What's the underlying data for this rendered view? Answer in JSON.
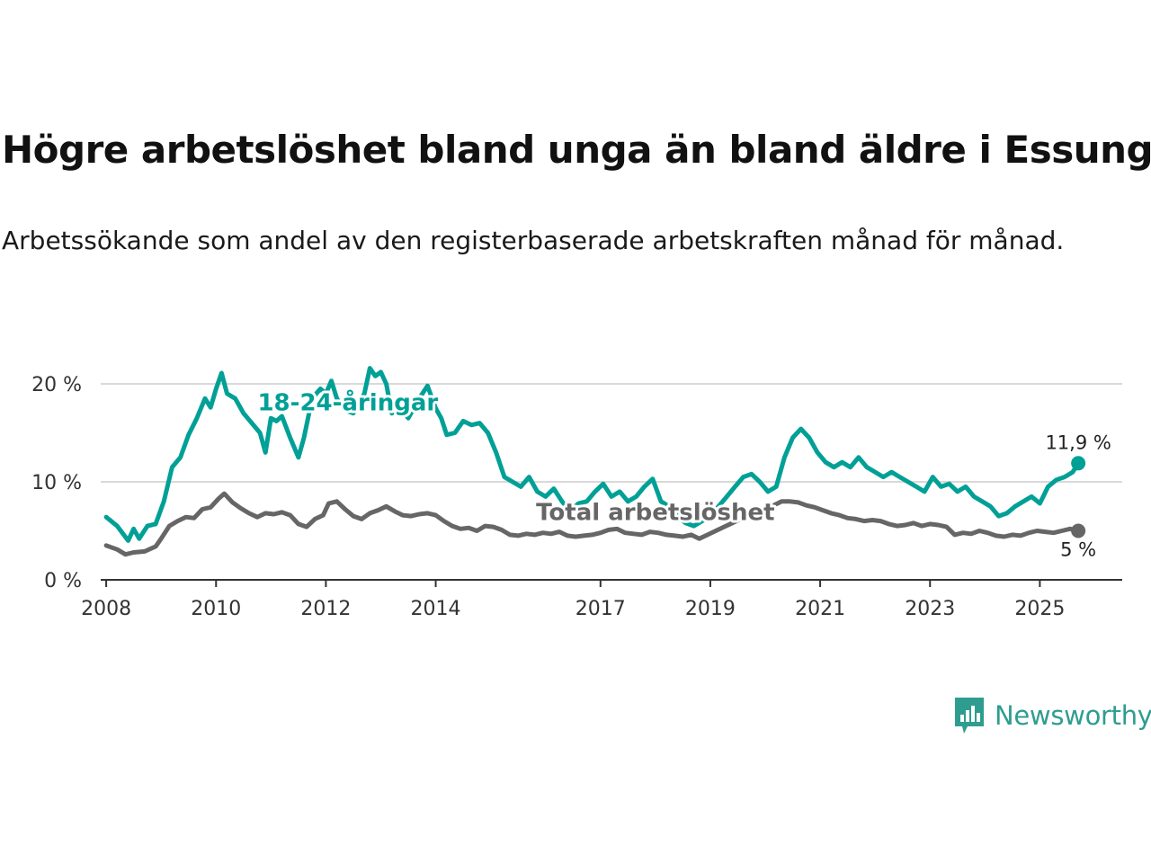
{
  "title": "Högre arbetslöshet bland unga än bland äldre i Essunga",
  "subtitle": "Arbetssökande som andel av den registerbaserade arbetskraften månad för månad.",
  "brand": {
    "name": "Newsworthy",
    "color": "#2e9d90"
  },
  "chart_data": {
    "type": "line",
    "title": "Högre arbetslöshet bland unga än bland äldre i Essunga",
    "xlabel": "",
    "ylabel": "",
    "xlim": [
      2007.9,
      2026.5
    ],
    "ylim": [
      0,
      20
    ],
    "y_ticks": [
      0,
      10,
      20
    ],
    "y_tick_labels": [
      "0 %",
      "10 %",
      "20 %"
    ],
    "x_ticks": [
      2008,
      2010,
      2012,
      2014,
      2017,
      2019,
      2021,
      2023,
      2025
    ],
    "x_tick_labels": [
      "2008",
      "2010",
      "2012",
      "2014",
      "2017",
      "2019",
      "2021",
      "2023",
      "2025"
    ],
    "grid": true,
    "series": [
      {
        "name": "18-24-åringar",
        "color": "#00a096",
        "label_at": [
          2012.4,
          17.3
        ],
        "end_label": "11,9 %",
        "points": [
          [
            2008.0,
            6.4
          ],
          [
            2008.2,
            5.5
          ],
          [
            2008.4,
            4.0
          ],
          [
            2008.5,
            5.2
          ],
          [
            2008.6,
            4.2
          ],
          [
            2008.75,
            5.5
          ],
          [
            2008.9,
            5.7
          ],
          [
            2009.05,
            8.0
          ],
          [
            2009.2,
            11.5
          ],
          [
            2009.35,
            12.5
          ],
          [
            2009.5,
            14.8
          ],
          [
            2009.65,
            16.5
          ],
          [
            2009.8,
            18.5
          ],
          [
            2009.9,
            17.6
          ],
          [
            2010.0,
            19.5
          ],
          [
            2010.1,
            21.1
          ],
          [
            2010.2,
            19.0
          ],
          [
            2010.35,
            18.5
          ],
          [
            2010.5,
            17.0
          ],
          [
            2010.65,
            16.0
          ],
          [
            2010.8,
            15.0
          ],
          [
            2010.9,
            13.0
          ],
          [
            2011.0,
            16.5
          ],
          [
            2011.1,
            16.2
          ],
          [
            2011.2,
            16.7
          ],
          [
            2011.35,
            14.5
          ],
          [
            2011.5,
            12.5
          ],
          [
            2011.6,
            14.5
          ],
          [
            2011.75,
            18.5
          ],
          [
            2011.9,
            19.5
          ],
          [
            2012.0,
            19.0
          ],
          [
            2012.1,
            20.3
          ],
          [
            2012.2,
            18.5
          ],
          [
            2012.35,
            17.3
          ],
          [
            2012.5,
            17.0
          ],
          [
            2012.7,
            19.0
          ],
          [
            2012.8,
            21.6
          ],
          [
            2012.9,
            20.8
          ],
          [
            2013.0,
            21.2
          ],
          [
            2013.1,
            20.0
          ],
          [
            2013.2,
            17.0
          ],
          [
            2013.35,
            17.5
          ],
          [
            2013.5,
            16.5
          ],
          [
            2013.7,
            18.5
          ],
          [
            2013.85,
            19.8
          ],
          [
            2014.0,
            17.5
          ],
          [
            2014.1,
            16.5
          ],
          [
            2014.2,
            14.8
          ],
          [
            2014.35,
            15.0
          ],
          [
            2014.5,
            16.2
          ],
          [
            2014.65,
            15.8
          ],
          [
            2014.8,
            16.0
          ],
          [
            2014.95,
            15.0
          ],
          [
            2015.1,
            13.0
          ],
          [
            2015.25,
            10.5
          ],
          [
            2015.4,
            10.0
          ],
          [
            2015.55,
            9.5
          ],
          [
            2015.7,
            10.5
          ],
          [
            2015.85,
            9.0
          ],
          [
            2016.0,
            8.5
          ],
          [
            2016.15,
            9.3
          ],
          [
            2016.3,
            8.0
          ],
          [
            2016.45,
            7.0
          ],
          [
            2016.6,
            7.8
          ],
          [
            2016.75,
            8.0
          ],
          [
            2016.9,
            9.0
          ],
          [
            2017.05,
            9.8
          ],
          [
            2017.2,
            8.5
          ],
          [
            2017.35,
            9.0
          ],
          [
            2017.5,
            8.0
          ],
          [
            2017.65,
            8.5
          ],
          [
            2017.8,
            9.5
          ],
          [
            2017.95,
            10.3
          ],
          [
            2018.1,
            8.0
          ],
          [
            2018.25,
            7.5
          ],
          [
            2018.4,
            6.5
          ],
          [
            2018.55,
            5.8
          ],
          [
            2018.7,
            5.5
          ],
          [
            2018.85,
            6.0
          ],
          [
            2019.0,
            6.5
          ],
          [
            2019.15,
            7.5
          ],
          [
            2019.3,
            8.5
          ],
          [
            2019.45,
            9.5
          ],
          [
            2019.6,
            10.5
          ],
          [
            2019.75,
            10.8
          ],
          [
            2019.9,
            10.0
          ],
          [
            2020.05,
            9.0
          ],
          [
            2020.2,
            9.5
          ],
          [
            2020.35,
            12.5
          ],
          [
            2020.5,
            14.5
          ],
          [
            2020.65,
            15.4
          ],
          [
            2020.8,
            14.5
          ],
          [
            2020.95,
            13.0
          ],
          [
            2021.1,
            12.0
          ],
          [
            2021.25,
            11.5
          ],
          [
            2021.4,
            12.0
          ],
          [
            2021.55,
            11.5
          ],
          [
            2021.7,
            12.5
          ],
          [
            2021.85,
            11.5
          ],
          [
            2022.0,
            11.0
          ],
          [
            2022.15,
            10.5
          ],
          [
            2022.3,
            11.0
          ],
          [
            2022.45,
            10.5
          ],
          [
            2022.6,
            10.0
          ],
          [
            2022.75,
            9.5
          ],
          [
            2022.9,
            9.0
          ],
          [
            2023.05,
            10.5
          ],
          [
            2023.2,
            9.5
          ],
          [
            2023.35,
            9.8
          ],
          [
            2023.5,
            9.0
          ],
          [
            2023.65,
            9.5
          ],
          [
            2023.8,
            8.5
          ],
          [
            2023.95,
            8.0
          ],
          [
            2024.1,
            7.5
          ],
          [
            2024.25,
            6.5
          ],
          [
            2024.4,
            6.8
          ],
          [
            2024.55,
            7.5
          ],
          [
            2024.7,
            8.0
          ],
          [
            2024.85,
            8.5
          ],
          [
            2025.0,
            7.8
          ],
          [
            2025.15,
            9.5
          ],
          [
            2025.3,
            10.2
          ],
          [
            2025.45,
            10.5
          ],
          [
            2025.6,
            11.0
          ],
          [
            2025.7,
            11.9
          ]
        ]
      },
      {
        "name": "Total arbetslöshet",
        "color": "#666666",
        "label_at": [
          2018.0,
          6.1
        ],
        "end_label": "5 %",
        "points": [
          [
            2008.0,
            3.5
          ],
          [
            2008.2,
            3.1
          ],
          [
            2008.35,
            2.6
          ],
          [
            2008.5,
            2.8
          ],
          [
            2008.7,
            2.9
          ],
          [
            2008.9,
            3.4
          ],
          [
            2009.0,
            4.2
          ],
          [
            2009.15,
            5.5
          ],
          [
            2009.3,
            6.0
          ],
          [
            2009.45,
            6.4
          ],
          [
            2009.6,
            6.3
          ],
          [
            2009.75,
            7.2
          ],
          [
            2009.9,
            7.4
          ],
          [
            2010.05,
            8.3
          ],
          [
            2010.15,
            8.8
          ],
          [
            2010.3,
            7.9
          ],
          [
            2010.45,
            7.3
          ],
          [
            2010.6,
            6.8
          ],
          [
            2010.75,
            6.4
          ],
          [
            2010.9,
            6.8
          ],
          [
            2011.05,
            6.7
          ],
          [
            2011.2,
            6.9
          ],
          [
            2011.35,
            6.6
          ],
          [
            2011.5,
            5.7
          ],
          [
            2011.65,
            5.4
          ],
          [
            2011.8,
            6.2
          ],
          [
            2011.95,
            6.6
          ],
          [
            2012.05,
            7.8
          ],
          [
            2012.2,
            8.0
          ],
          [
            2012.35,
            7.2
          ],
          [
            2012.5,
            6.5
          ],
          [
            2012.65,
            6.2
          ],
          [
            2012.8,
            6.8
          ],
          [
            2012.95,
            7.1
          ],
          [
            2013.1,
            7.5
          ],
          [
            2013.25,
            7.0
          ],
          [
            2013.4,
            6.6
          ],
          [
            2013.55,
            6.5
          ],
          [
            2013.7,
            6.7
          ],
          [
            2013.85,
            6.8
          ],
          [
            2014.0,
            6.6
          ],
          [
            2014.15,
            6.0
          ],
          [
            2014.3,
            5.5
          ],
          [
            2014.45,
            5.2
          ],
          [
            2014.6,
            5.3
          ],
          [
            2014.75,
            5.0
          ],
          [
            2014.9,
            5.5
          ],
          [
            2015.05,
            5.4
          ],
          [
            2015.2,
            5.1
          ],
          [
            2015.35,
            4.6
          ],
          [
            2015.5,
            4.5
          ],
          [
            2015.65,
            4.7
          ],
          [
            2015.8,
            4.6
          ],
          [
            2015.95,
            4.8
          ],
          [
            2016.1,
            4.7
          ],
          [
            2016.25,
            4.9
          ],
          [
            2016.4,
            4.5
          ],
          [
            2016.55,
            4.4
          ],
          [
            2016.7,
            4.5
          ],
          [
            2016.85,
            4.6
          ],
          [
            2017.0,
            4.8
          ],
          [
            2017.15,
            5.1
          ],
          [
            2017.3,
            5.2
          ],
          [
            2017.45,
            4.8
          ],
          [
            2017.6,
            4.7
          ],
          [
            2017.75,
            4.6
          ],
          [
            2017.9,
            4.9
          ],
          [
            2018.05,
            4.8
          ],
          [
            2018.2,
            4.6
          ],
          [
            2018.35,
            4.5
          ],
          [
            2018.5,
            4.4
          ],
          [
            2018.65,
            4.6
          ],
          [
            2018.8,
            4.2
          ],
          [
            2018.95,
            4.6
          ],
          [
            2019.1,
            5.0
          ],
          [
            2019.25,
            5.4
          ],
          [
            2019.4,
            5.8
          ],
          [
            2019.55,
            6.2
          ],
          [
            2019.7,
            6.8
          ],
          [
            2019.85,
            7.0
          ],
          [
            2020.0,
            7.3
          ],
          [
            2020.15,
            7.6
          ],
          [
            2020.3,
            8.0
          ],
          [
            2020.45,
            8.0
          ],
          [
            2020.6,
            7.9
          ],
          [
            2020.75,
            7.6
          ],
          [
            2020.9,
            7.4
          ],
          [
            2021.05,
            7.1
          ],
          [
            2021.2,
            6.8
          ],
          [
            2021.35,
            6.6
          ],
          [
            2021.5,
            6.3
          ],
          [
            2021.65,
            6.2
          ],
          [
            2021.8,
            6.0
          ],
          [
            2021.95,
            6.1
          ],
          [
            2022.1,
            6.0
          ],
          [
            2022.25,
            5.7
          ],
          [
            2022.4,
            5.5
          ],
          [
            2022.55,
            5.6
          ],
          [
            2022.7,
            5.8
          ],
          [
            2022.85,
            5.5
          ],
          [
            2023.0,
            5.7
          ],
          [
            2023.15,
            5.6
          ],
          [
            2023.3,
            5.4
          ],
          [
            2023.45,
            4.6
          ],
          [
            2023.6,
            4.8
          ],
          [
            2023.75,
            4.7
          ],
          [
            2023.9,
            5.0
          ],
          [
            2024.05,
            4.8
          ],
          [
            2024.2,
            4.5
          ],
          [
            2024.35,
            4.4
          ],
          [
            2024.5,
            4.6
          ],
          [
            2024.65,
            4.5
          ],
          [
            2024.8,
            4.8
          ],
          [
            2024.95,
            5.0
          ],
          [
            2025.1,
            4.9
          ],
          [
            2025.25,
            4.8
          ],
          [
            2025.4,
            5.0
          ],
          [
            2025.55,
            5.2
          ],
          [
            2025.7,
            5.0
          ]
        ]
      }
    ]
  }
}
